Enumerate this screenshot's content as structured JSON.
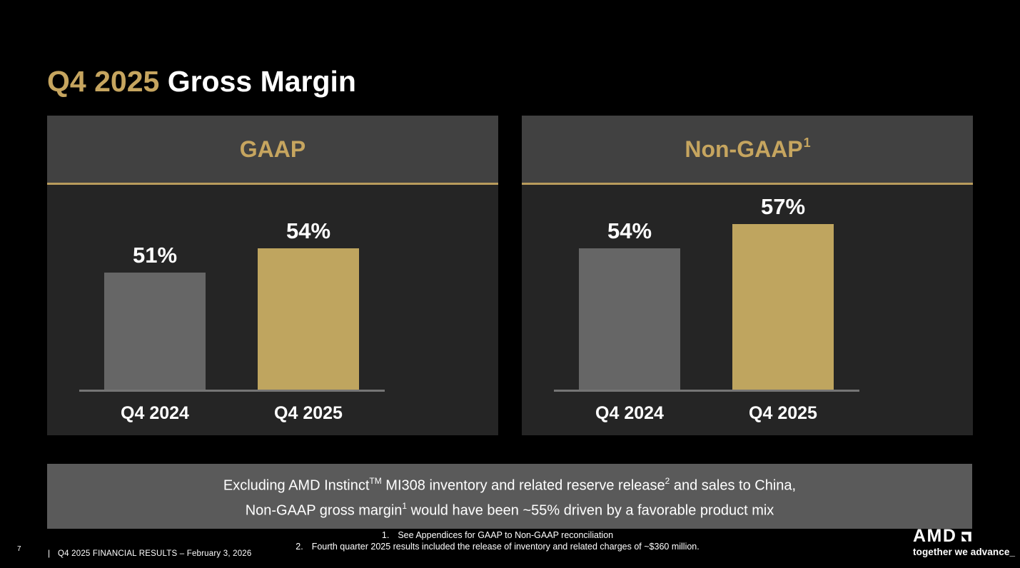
{
  "title": {
    "highlight": "Q4 2025",
    "rest": "Gross Margin"
  },
  "colors": {
    "accent_gold_text": "#C6A55F",
    "bar_gold": "#BFA55F",
    "bar_gray": "#666666",
    "panel_header_bg": "#414141",
    "panel_body_bg": "#252525",
    "callout_bg": "#5A5A5A",
    "background": "#000000"
  },
  "chart_data": [
    {
      "type": "bar",
      "title": "GAAP",
      "categories": [
        "Q4 2024",
        "Q4 2025"
      ],
      "values": [
        51,
        54
      ],
      "data_labels": [
        "51%",
        "54%"
      ],
      "unit": "%",
      "bar_colors": [
        "#666666",
        "#BFA55F"
      ],
      "ylim": [
        36.5,
        62
      ],
      "grid": "off",
      "legend": "none"
    },
    {
      "type": "bar",
      "title": "Non-GAAP",
      "title_footnote_ref": "1",
      "categories": [
        "Q4 2024",
        "Q4 2025"
      ],
      "values": [
        54,
        57
      ],
      "data_labels": [
        "54%",
        "57%"
      ],
      "unit": "%",
      "bar_colors": [
        "#666666",
        "#BFA55F"
      ],
      "ylim": [
        36.5,
        62
      ],
      "grid": "off",
      "legend": "none"
    }
  ],
  "callout": {
    "l1a": "Excluding AMD Instinct",
    "l1sup1": "TM",
    "l1b": " MI308 inventory and related reserve release",
    "l1sup2": "2",
    "l1c": " and sales to China,",
    "l2a": "Non-GAAP gross margin",
    "l2sup": "1",
    "l2b": " would have been ~55% driven by a favorable product mix"
  },
  "footnotes": [
    {
      "num": "1.",
      "text": "See Appendices for GAAP to Non-GAAP reconciliation"
    },
    {
      "num": "2.",
      "text": "Fourth quarter 2025 results included the release of inventory and related charges of ~$360 million."
    }
  ],
  "footer": {
    "page_number": "7",
    "separator": "|",
    "text": "Q4 2025 FINANCIAL RESULTS – February 3, 2026"
  },
  "logo": {
    "brand": "AMD",
    "mark_icon": "amd-arrow-icon",
    "tagline": "together we advance_"
  }
}
